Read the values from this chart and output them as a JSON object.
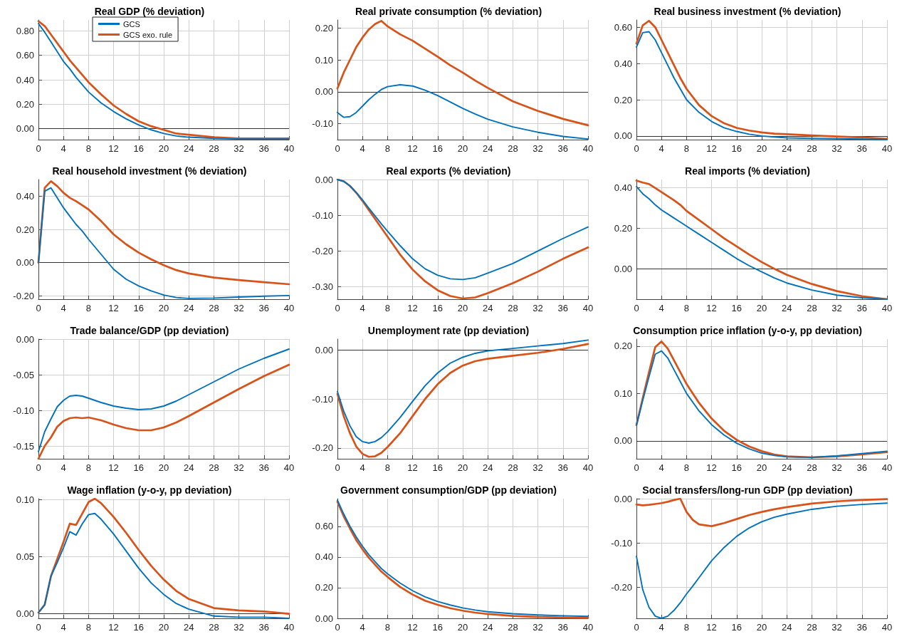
{
  "chart_data": [
    {
      "type": "line",
      "title": "Real GDP (% deviation)",
      "legend": "top",
      "grid": true,
      "marker": "none",
      "x": [
        0,
        1,
        2,
        3,
        4,
        5,
        6,
        7,
        8,
        10,
        12,
        14,
        16,
        18,
        20,
        22,
        24,
        28,
        32,
        36,
        40
      ],
      "xlim": [
        0,
        40
      ],
      "xticks": [
        0,
        4,
        8,
        12,
        16,
        20,
        24,
        28,
        32,
        36,
        40
      ],
      "ylim": [
        -0.09,
        0.89
      ],
      "yticks": [
        {
          "value": 0,
          "label": "0.00"
        },
        {
          "value": 0.2,
          "label": "0.20"
        },
        {
          "value": 0.4,
          "label": "0.40"
        },
        {
          "value": 0.6,
          "label": "0.60"
        },
        {
          "value": 0.8,
          "label": "0.80"
        }
      ],
      "ref_lines": [
        {
          "axis": "y",
          "value": 0,
          "color": "#333333"
        }
      ],
      "series": [
        {
          "name": "GCS",
          "color": "#0072bd",
          "values": [
            0.86,
            0.79,
            0.71,
            0.63,
            0.55,
            0.49,
            0.42,
            0.36,
            0.3,
            0.21,
            0.14,
            0.08,
            0.03,
            -0.01,
            -0.04,
            -0.06,
            -0.07,
            -0.08,
            -0.085,
            -0.085,
            -0.085
          ]
        },
        {
          "name": "GCS exo. rule",
          "color": "#d95319",
          "values": [
            0.88,
            0.84,
            0.77,
            0.7,
            0.63,
            0.56,
            0.5,
            0.44,
            0.38,
            0.28,
            0.19,
            0.12,
            0.06,
            0.02,
            -0.01,
            -0.04,
            -0.05,
            -0.07,
            -0.08,
            -0.08,
            -0.08
          ]
        }
      ]
    },
    {
      "type": "line",
      "title": "Real private consumption (% deviation)",
      "grid": true,
      "marker": "none",
      "x": [
        0,
        1,
        2,
        3,
        4,
        5,
        6,
        7,
        8,
        10,
        12,
        14,
        16,
        18,
        20,
        22,
        24,
        28,
        32,
        36,
        40
      ],
      "xlim": [
        0,
        40
      ],
      "xticks": [
        0,
        4,
        8,
        12,
        16,
        20,
        24,
        28,
        32,
        36,
        40
      ],
      "ylim": [
        -0.15,
        0.225
      ],
      "yticks": [
        {
          "value": -0.1,
          "label": "-0.10"
        },
        {
          "value": 0,
          "label": "0.00"
        },
        {
          "value": 0.1,
          "label": "0.10"
        },
        {
          "value": 0.2,
          "label": "0.20"
        }
      ],
      "ref_lines": [
        {
          "axis": "y",
          "value": 0,
          "color": "#333333"
        }
      ],
      "series": [
        {
          "color": "#0072bd",
          "values": [
            -0.065,
            -0.08,
            -0.078,
            -0.065,
            -0.045,
            -0.025,
            -0.008,
            0.007,
            0.016,
            0.022,
            0.018,
            0.005,
            -0.012,
            -0.032,
            -0.052,
            -0.07,
            -0.086,
            -0.11,
            -0.127,
            -0.14,
            -0.148
          ]
        },
        {
          "color": "#d95319",
          "values": [
            0.01,
            0.06,
            0.1,
            0.14,
            0.17,
            0.195,
            0.212,
            0.222,
            0.205,
            0.18,
            0.16,
            0.135,
            0.11,
            0.083,
            0.06,
            0.035,
            0.012,
            -0.03,
            -0.06,
            -0.085,
            -0.105
          ]
        }
      ]
    },
    {
      "type": "line",
      "title": "Real business investment (% deviation)",
      "grid": true,
      "marker": "none",
      "x": [
        0,
        1,
        2,
        3,
        4,
        5,
        6,
        7,
        8,
        10,
        12,
        14,
        16,
        18,
        20,
        22,
        24,
        28,
        32,
        36,
        40
      ],
      "xlim": [
        0,
        40
      ],
      "xticks": [
        0,
        4,
        8,
        12,
        16,
        20,
        24,
        28,
        32,
        36,
        40
      ],
      "ylim": [
        -0.02,
        0.64
      ],
      "yticks": [
        {
          "value": 0,
          "label": "0.00"
        },
        {
          "value": 0.2,
          "label": "0.20"
        },
        {
          "value": 0.4,
          "label": "0.40"
        },
        {
          "value": 0.6,
          "label": "0.60"
        }
      ],
      "ref_lines": [
        {
          "axis": "y",
          "value": 0,
          "color": "#333333"
        }
      ],
      "series": [
        {
          "color": "#0072bd",
          "values": [
            0.49,
            0.57,
            0.575,
            0.53,
            0.46,
            0.39,
            0.32,
            0.26,
            0.2,
            0.13,
            0.08,
            0.045,
            0.025,
            0.01,
            0.0,
            -0.005,
            -0.01,
            -0.013,
            -0.015,
            -0.017,
            -0.02
          ]
        },
        {
          "color": "#d95319",
          "values": [
            0.51,
            0.61,
            0.635,
            0.6,
            0.53,
            0.46,
            0.39,
            0.32,
            0.26,
            0.17,
            0.11,
            0.07,
            0.045,
            0.03,
            0.02,
            0.013,
            0.01,
            0.003,
            -0.003,
            -0.008,
            -0.015
          ]
        }
      ]
    },
    {
      "type": "line",
      "title": "Real household investment (% deviation)",
      "grid": true,
      "marker": "none",
      "x": [
        0,
        1,
        2,
        3,
        4,
        5,
        6,
        7,
        8,
        10,
        12,
        14,
        16,
        18,
        20,
        22,
        24,
        28,
        32,
        36,
        40
      ],
      "xlim": [
        0,
        40
      ],
      "xticks": [
        0,
        4,
        8,
        12,
        16,
        20,
        24,
        28,
        32,
        36,
        40
      ],
      "ylim": [
        -0.22,
        0.5
      ],
      "yticks": [
        {
          "value": -0.2,
          "label": "-0.20"
        },
        {
          "value": 0,
          "label": "0.00"
        },
        {
          "value": 0.2,
          "label": "0.20"
        },
        {
          "value": 0.4,
          "label": "0.40"
        }
      ],
      "ref_lines": [
        {
          "axis": "y",
          "value": 0,
          "color": "#333333"
        }
      ],
      "series": [
        {
          "color": "#0072bd",
          "values": [
            0,
            0.43,
            0.45,
            0.39,
            0.33,
            0.28,
            0.23,
            0.19,
            0.14,
            0.05,
            -0.04,
            -0.1,
            -0.14,
            -0.17,
            -0.195,
            -0.21,
            -0.215,
            -0.213,
            -0.207,
            -0.202,
            -0.198
          ]
        },
        {
          "color": "#d95319",
          "values": [
            0,
            0.45,
            0.49,
            0.46,
            0.42,
            0.39,
            0.37,
            0.345,
            0.32,
            0.25,
            0.17,
            0.11,
            0.06,
            0.02,
            -0.015,
            -0.045,
            -0.065,
            -0.09,
            -0.105,
            -0.118,
            -0.13
          ]
        }
      ]
    },
    {
      "type": "line",
      "title": "Real exports (% deviation)",
      "grid": true,
      "marker": "none",
      "x": [
        0,
        1,
        2,
        3,
        4,
        5,
        6,
        7,
        8,
        10,
        12,
        14,
        16,
        18,
        20,
        22,
        24,
        28,
        32,
        36,
        40
      ],
      "xlim": [
        0,
        40
      ],
      "xticks": [
        0,
        4,
        8,
        12,
        16,
        20,
        24,
        28,
        32,
        36,
        40
      ],
      "ylim": [
        -0.335,
        0
      ],
      "yticks": [
        {
          "value": -0.3,
          "label": "-0.30"
        },
        {
          "value": -0.2,
          "label": "-0.20"
        },
        {
          "value": -0.1,
          "label": "-0.10"
        },
        {
          "value": 0,
          "label": "0.00"
        }
      ],
      "series": [
        {
          "color": "#0072bd",
          "values": [
            0,
            -0.005,
            -0.018,
            -0.036,
            -0.057,
            -0.08,
            -0.102,
            -0.124,
            -0.145,
            -0.185,
            -0.222,
            -0.25,
            -0.268,
            -0.278,
            -0.28,
            -0.275,
            -0.262,
            -0.235,
            -0.2,
            -0.165,
            -0.133
          ]
        },
        {
          "color": "#d95319",
          "values": [
            0,
            -0.005,
            -0.018,
            -0.037,
            -0.06,
            -0.085,
            -0.11,
            -0.135,
            -0.16,
            -0.21,
            -0.252,
            -0.285,
            -0.31,
            -0.326,
            -0.333,
            -0.33,
            -0.318,
            -0.29,
            -0.258,
            -0.222,
            -0.19
          ]
        }
      ]
    },
    {
      "type": "line",
      "title": "Real imports (% deviation)",
      "grid": true,
      "marker": "none",
      "x": [
        0,
        1,
        2,
        3,
        4,
        5,
        6,
        7,
        8,
        10,
        12,
        14,
        16,
        18,
        20,
        22,
        24,
        28,
        32,
        36,
        40
      ],
      "xlim": [
        0,
        40
      ],
      "xticks": [
        0,
        4,
        8,
        12,
        16,
        20,
        24,
        28,
        32,
        36,
        40
      ],
      "ylim": [
        -0.15,
        0.44
      ],
      "yticks": [
        {
          "value": 0,
          "label": "0.00"
        },
        {
          "value": 0.2,
          "label": "0.20"
        },
        {
          "value": 0.4,
          "label": "0.40"
        }
      ],
      "ref_lines": [
        {
          "axis": "y",
          "value": 0,
          "color": "#333333"
        }
      ],
      "series": [
        {
          "color": "#0072bd",
          "values": [
            0.405,
            0.37,
            0.345,
            0.315,
            0.29,
            0.27,
            0.25,
            0.23,
            0.21,
            0.17,
            0.13,
            0.09,
            0.05,
            0.015,
            -0.015,
            -0.045,
            -0.07,
            -0.105,
            -0.13,
            -0.143,
            -0.15
          ]
        },
        {
          "color": "#d95319",
          "values": [
            0.435,
            0.425,
            0.418,
            0.398,
            0.378,
            0.358,
            0.338,
            0.315,
            0.285,
            0.24,
            0.195,
            0.15,
            0.11,
            0.07,
            0.033,
            0.0,
            -0.03,
            -0.075,
            -0.11,
            -0.135,
            -0.15
          ]
        }
      ]
    },
    {
      "type": "line",
      "title": "Trade balance/GDP (pp deviation)",
      "grid": true,
      "marker": "none",
      "x": [
        0,
        1,
        2,
        3,
        4,
        5,
        6,
        7,
        8,
        10,
        12,
        14,
        16,
        18,
        20,
        22,
        24,
        28,
        32,
        36,
        40
      ],
      "xlim": [
        0,
        40
      ],
      "xticks": [
        0,
        4,
        8,
        12,
        16,
        20,
        24,
        28,
        32,
        36,
        40
      ],
      "ylim": [
        -0.168,
        0
      ],
      "yticks": [
        {
          "value": -0.15,
          "label": "-0.15"
        },
        {
          "value": -0.1,
          "label": "-0.10"
        },
        {
          "value": -0.05,
          "label": "-0.05"
        },
        {
          "value": 0,
          "label": "0.00"
        }
      ],
      "series": [
        {
          "color": "#0072bd",
          "values": [
            -0.158,
            -0.13,
            -0.112,
            -0.095,
            -0.086,
            -0.08,
            -0.079,
            -0.08,
            -0.083,
            -0.089,
            -0.094,
            -0.097,
            -0.099,
            -0.098,
            -0.094,
            -0.087,
            -0.078,
            -0.06,
            -0.042,
            -0.027,
            -0.014
          ]
        },
        {
          "color": "#d95319",
          "values": [
            -0.168,
            -0.15,
            -0.138,
            -0.123,
            -0.115,
            -0.111,
            -0.11,
            -0.111,
            -0.11,
            -0.114,
            -0.12,
            -0.125,
            -0.128,
            -0.128,
            -0.124,
            -0.117,
            -0.108,
            -0.089,
            -0.07,
            -0.052,
            -0.036
          ]
        }
      ]
    },
    {
      "type": "line",
      "title": "Unemployment rate (pp deviation)",
      "grid": true,
      "marker": "none",
      "x": [
        0,
        1,
        2,
        3,
        4,
        5,
        6,
        7,
        8,
        10,
        12,
        14,
        16,
        18,
        20,
        22,
        24,
        28,
        32,
        36,
        40
      ],
      "xlim": [
        0,
        40
      ],
      "xticks": [
        0,
        4,
        8,
        12,
        16,
        20,
        24,
        28,
        32,
        36,
        40
      ],
      "ylim": [
        -0.222,
        0.022
      ],
      "yticks": [
        {
          "value": -0.2,
          "label": "-0.20"
        },
        {
          "value": -0.1,
          "label": "-0.10"
        },
        {
          "value": 0,
          "label": "0.00"
        }
      ],
      "ref_lines": [
        {
          "axis": "y",
          "value": 0,
          "color": "#333333"
        }
      ],
      "series": [
        {
          "color": "#0072bd",
          "values": [
            -0.085,
            -0.125,
            -0.155,
            -0.177,
            -0.187,
            -0.19,
            -0.187,
            -0.179,
            -0.167,
            -0.138,
            -0.105,
            -0.073,
            -0.047,
            -0.027,
            -0.015,
            -0.007,
            -0.002,
            0.003,
            0.008,
            0.013,
            0.02
          ]
        },
        {
          "color": "#d95319",
          "values": [
            -0.09,
            -0.135,
            -0.17,
            -0.197,
            -0.212,
            -0.218,
            -0.217,
            -0.21,
            -0.198,
            -0.17,
            -0.135,
            -0.1,
            -0.07,
            -0.047,
            -0.032,
            -0.023,
            -0.018,
            -0.012,
            -0.006,
            0.002,
            0.012
          ]
        }
      ]
    },
    {
      "type": "line",
      "title": "Consumption price inflation (y-o-y, pp deviation)",
      "grid": true,
      "marker": "none",
      "x": [
        0,
        1,
        2,
        3,
        4,
        5,
        6,
        7,
        8,
        10,
        12,
        14,
        16,
        18,
        20,
        22,
        24,
        28,
        32,
        36,
        40
      ],
      "xlim": [
        0,
        40
      ],
      "xticks": [
        0,
        4,
        8,
        12,
        16,
        20,
        24,
        28,
        32,
        36,
        40
      ],
      "ylim": [
        -0.038,
        0.215
      ],
      "yticks": [
        {
          "value": 0,
          "label": "0.00"
        },
        {
          "value": 0.1,
          "label": "0.10"
        },
        {
          "value": 0.2,
          "label": "0.20"
        }
      ],
      "ref_lines": [
        {
          "axis": "y",
          "value": 0,
          "color": "#333333"
        }
      ],
      "series": [
        {
          "color": "#0072bd",
          "values": [
            0.033,
            0.085,
            0.135,
            0.183,
            0.19,
            0.175,
            0.15,
            0.125,
            0.1,
            0.063,
            0.034,
            0.012,
            -0.005,
            -0.017,
            -0.026,
            -0.031,
            -0.034,
            -0.035,
            -0.032,
            -0.027,
            -0.022
          ]
        },
        {
          "color": "#d95319",
          "values": [
            0.033,
            0.09,
            0.145,
            0.198,
            0.21,
            0.195,
            0.17,
            0.145,
            0.12,
            0.08,
            0.047,
            0.021,
            0.002,
            -0.012,
            -0.022,
            -0.029,
            -0.033,
            -0.035,
            -0.033,
            -0.029,
            -0.024
          ]
        }
      ]
    },
    {
      "type": "line",
      "title": "Wage inflation (y-o-y, pp deviation)",
      "grid": true,
      "marker": "none",
      "x": [
        0,
        1,
        2,
        3,
        4,
        5,
        6,
        7,
        8,
        9,
        10,
        12,
        14,
        16,
        18,
        20,
        22,
        24,
        28,
        32,
        36,
        40
      ],
      "xlim": [
        0,
        40
      ],
      "xticks": [
        0,
        4,
        8,
        12,
        16,
        20,
        24,
        28,
        32,
        36,
        40
      ],
      "ylim": [
        -0.004,
        0.101
      ],
      "yticks": [
        {
          "value": 0,
          "label": "0.00"
        },
        {
          "value": 0.05,
          "label": "0.05"
        },
        {
          "value": 0.1,
          "label": "0.10"
        }
      ],
      "ref_lines": [
        {
          "axis": "y",
          "value": 0,
          "color": "#333333"
        }
      ],
      "series": [
        {
          "color": "#0072bd",
          "values": [
            0.001,
            0.008,
            0.033,
            0.045,
            0.058,
            0.072,
            0.069,
            0.079,
            0.087,
            0.088,
            0.083,
            0.07,
            0.055,
            0.04,
            0.027,
            0.017,
            0.009,
            0.004,
            -0.002,
            -0.003,
            -0.003,
            -0.004
          ]
        },
        {
          "color": "#d95319",
          "values": [
            0.001,
            0.008,
            0.033,
            0.048,
            0.063,
            0.079,
            0.078,
            0.088,
            0.098,
            0.101,
            0.097,
            0.085,
            0.071,
            0.056,
            0.042,
            0.03,
            0.02,
            0.013,
            0.005,
            0.003,
            0.002,
            0.0
          ]
        }
      ]
    },
    {
      "type": "line",
      "title": "Government consumption/GDP (pp deviation)",
      "grid": true,
      "marker": "none",
      "x": [
        0,
        1,
        2,
        3,
        4,
        5,
        6,
        7,
        8,
        10,
        12,
        14,
        16,
        18,
        20,
        22,
        24,
        28,
        32,
        36,
        40
      ],
      "xlim": [
        0,
        40
      ],
      "xticks": [
        0,
        4,
        8,
        12,
        16,
        20,
        24,
        28,
        32,
        36,
        40
      ],
      "ylim": [
        0,
        0.78
      ],
      "yticks": [
        {
          "value": 0,
          "label": "0.00"
        },
        {
          "value": 0.2,
          "label": "0.20"
        },
        {
          "value": 0.4,
          "label": "0.40"
        },
        {
          "value": 0.6,
          "label": "0.60"
        }
      ],
      "series": [
        {
          "color": "#0072bd",
          "values": [
            0.77,
            0.68,
            0.6,
            0.53,
            0.47,
            0.415,
            0.37,
            0.325,
            0.29,
            0.23,
            0.18,
            0.14,
            0.11,
            0.087,
            0.068,
            0.054,
            0.043,
            0.03,
            0.022,
            0.017,
            0.013
          ]
        },
        {
          "color": "#d95319",
          "values": [
            0.76,
            0.665,
            0.585,
            0.51,
            0.45,
            0.395,
            0.35,
            0.305,
            0.27,
            0.205,
            0.155,
            0.115,
            0.088,
            0.066,
            0.05,
            0.037,
            0.028,
            0.016,
            0.009,
            0.005,
            0.003
          ]
        }
      ]
    },
    {
      "type": "line",
      "title": "Social transfers/long-run GDP (pp deviation)",
      "grid": true,
      "marker": "none",
      "x": [
        0,
        1,
        2,
        3,
        4,
        5,
        6,
        7,
        8,
        9,
        10,
        12,
        14,
        16,
        18,
        20,
        22,
        24,
        28,
        32,
        36,
        40
      ],
      "xlim": [
        0,
        40
      ],
      "xticks": [
        0,
        4,
        8,
        12,
        16,
        20,
        24,
        28,
        32,
        36,
        40
      ],
      "ylim": [
        -0.27,
        0
      ],
      "yticks": [
        {
          "value": -0.2,
          "label": "-0.20"
        },
        {
          "value": -0.1,
          "label": "-0.10"
        },
        {
          "value": 0,
          "label": "0.00"
        }
      ],
      "series": [
        {
          "color": "#0072bd",
          "values": [
            -0.13,
            -0.205,
            -0.245,
            -0.265,
            -0.27,
            -0.265,
            -0.252,
            -0.235,
            -0.215,
            -0.197,
            -0.178,
            -0.14,
            -0.11,
            -0.085,
            -0.066,
            -0.052,
            -0.042,
            -0.035,
            -0.024,
            -0.017,
            -0.013,
            -0.01
          ]
        },
        {
          "color": "#d95319",
          "values": [
            -0.013,
            -0.015,
            -0.014,
            -0.012,
            -0.01,
            -0.007,
            -0.003,
            0.0,
            -0.03,
            -0.048,
            -0.058,
            -0.062,
            -0.055,
            -0.046,
            -0.037,
            -0.03,
            -0.024,
            -0.019,
            -0.011,
            -0.006,
            -0.003,
            -0.001
          ]
        }
      ]
    }
  ]
}
